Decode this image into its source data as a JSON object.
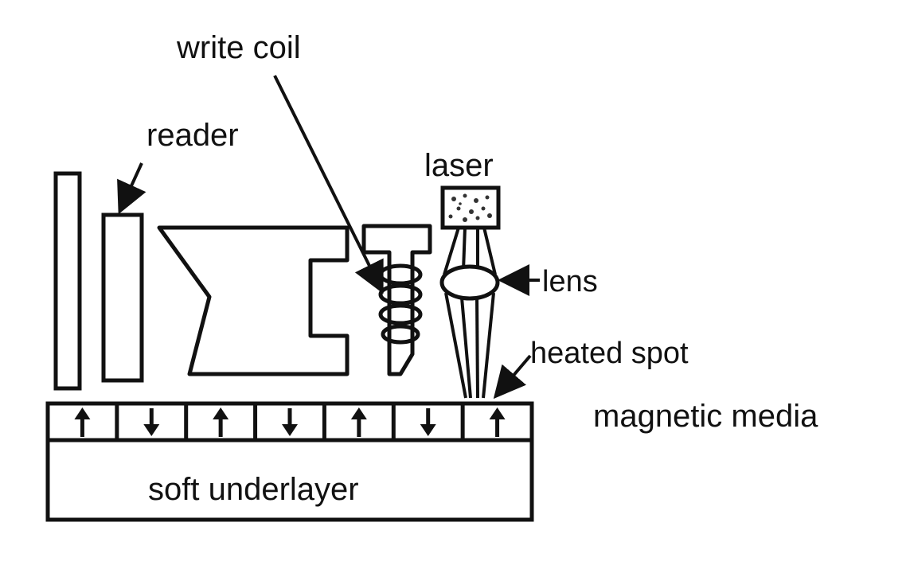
{
  "labels": {
    "write_coil": "write coil",
    "reader": "reader",
    "laser": "laser",
    "lens": "lens",
    "heated_spot": "heated spot",
    "magnetic_media": "magnetic media",
    "soft_underlayer": "soft underlayer"
  },
  "magnetic_media": {
    "domains": [
      "up",
      "down",
      "up",
      "down",
      "up",
      "down",
      "up"
    ]
  },
  "colors": {
    "ink": "#111111",
    "background": "#ffffff"
  }
}
